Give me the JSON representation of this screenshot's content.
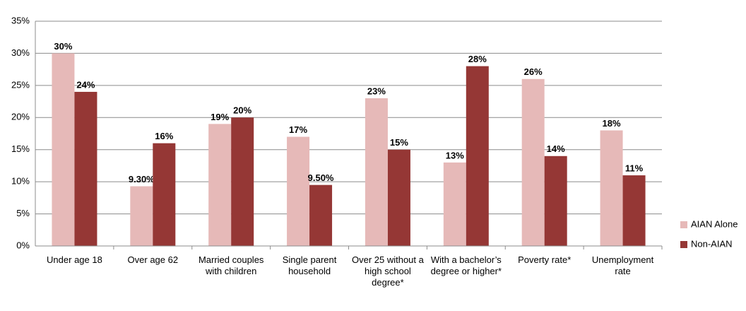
{
  "chart_data": {
    "type": "bar",
    "categories": [
      "Under age 18",
      "Over age 62",
      "Married couples with children",
      "Single parent household",
      "Over 25 without a high school degree*",
      "With a bachelor’s degree or higher*",
      "Poverty rate*",
      "Unemployment rate"
    ],
    "series": [
      {
        "name": "AIAN Alone",
        "color": "#e6b9b8",
        "values": [
          30,
          9.3,
          19,
          17,
          23,
          13,
          26,
          18
        ],
        "value_labels": [
          "30%",
          "9.30%",
          "19%",
          "17%",
          "23%",
          "13%",
          "26%",
          "18%"
        ]
      },
      {
        "name": "Non-AIAN",
        "color": "#953735",
        "values": [
          24,
          16,
          20,
          9.5,
          15,
          28,
          14,
          11
        ],
        "value_labels": [
          "24%",
          "16%",
          "20%",
          "9.50%",
          "15%",
          "28%",
          "14%",
          "11%"
        ]
      }
    ],
    "ylim": [
      0,
      35
    ],
    "yticks": [
      {
        "value": 0,
        "label": "0%"
      },
      {
        "value": 5,
        "label": "5%"
      },
      {
        "value": 10,
        "label": "10%"
      },
      {
        "value": 15,
        "label": "15%"
      },
      {
        "value": 20,
        "label": "20%"
      },
      {
        "value": 25,
        "label": "25%"
      },
      {
        "value": 30,
        "label": "30%"
      },
      {
        "value": 35,
        "label": "35%"
      }
    ],
    "grid": true,
    "legend": "right"
  }
}
